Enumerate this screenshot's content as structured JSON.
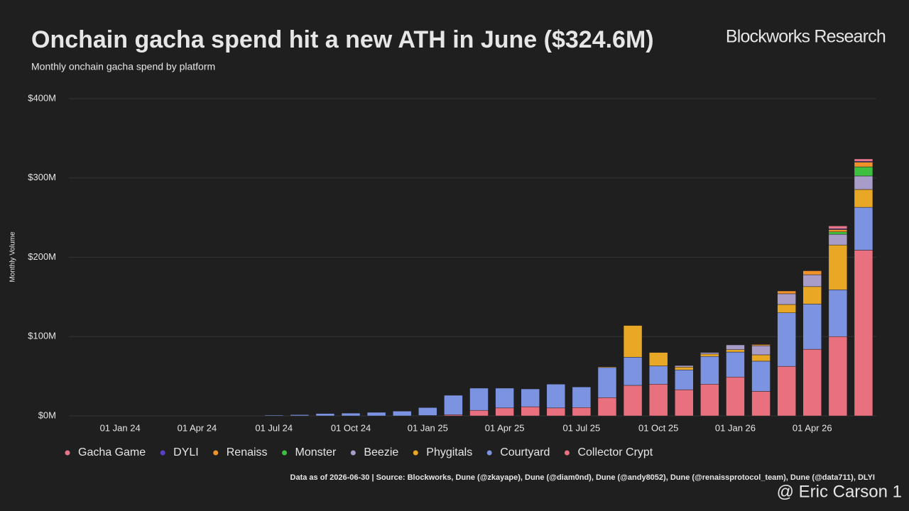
{
  "chart_data": {
    "type": "stacked_bar",
    "title": "Onchain gacha spend hit a new ATH in June ($324.6M)",
    "subtitle": "Monthly onchain gacha spend by platform",
    "brand": "Blockworks Research",
    "y_label": "Monthly Volume",
    "source": "Data as of 2026-06-30 | Source: Blockworks, Dune (@zkayape), Dune (@diam0nd), Dune (@andy8052), Dune (@renaissprotocol_team), Dune (@data711), DLYI",
    "watermark": "@ Eric Carson 1",
    "categories": [
      null,
      "01 Jan 24",
      null,
      null,
      "01 Apr 24",
      null,
      null,
      "01 Jul 24",
      null,
      null,
      "01 Oct 24",
      null,
      null,
      "01 Jan 25",
      null,
      null,
      "01 Apr 25",
      null,
      null,
      "01 Jul 25",
      null,
      null,
      "01 Oct 25",
      null,
      null,
      "01 Jan 26",
      null,
      null,
      "01 Apr 26",
      null,
      null
    ],
    "ylim": [
      0,
      400
    ],
    "yticks": [
      {
        "value": 0,
        "label": "$0M"
      },
      {
        "value": 100,
        "label": "$100M"
      },
      {
        "value": 200,
        "label": "$200M"
      },
      {
        "value": 300,
        "label": "$300M"
      },
      {
        "value": 400,
        "label": "$400M"
      }
    ],
    "grid": true,
    "legend": "bottom-left",
    "series": [
      {
        "name": "Gacha Game",
        "color": "#e8768a",
        "values": [
          0,
          0,
          0,
          0,
          0,
          0,
          0,
          0,
          0,
          0,
          0,
          0,
          0,
          0,
          0,
          0,
          0,
          0,
          0,
          0,
          0,
          0,
          0,
          0,
          0,
          0,
          0,
          0,
          0,
          3.5,
          3
        ]
      },
      {
        "name": "DYLI",
        "color": "#5a3fc9",
        "values": [
          0,
          0,
          0,
          0,
          0,
          0,
          0,
          0,
          0,
          0,
          0,
          0,
          0,
          0,
          0,
          0,
          0,
          0,
          0,
          0,
          0,
          0,
          0,
          0,
          0,
          0,
          0,
          0,
          0,
          1,
          1
        ]
      },
      {
        "name": "Renaiss",
        "color": "#f0922a",
        "values": [
          0,
          0,
          0,
          0,
          0,
          0,
          0,
          0,
          0,
          0,
          0,
          0,
          0,
          0,
          0,
          0,
          0,
          0,
          0,
          0,
          0,
          0,
          0,
          0,
          0,
          0,
          1.5,
          3.5,
          5,
          3,
          6
        ]
      },
      {
        "name": "Monster",
        "color": "#3fbf3f",
        "values": [
          0,
          0,
          0,
          0,
          0,
          0,
          0,
          0,
          0,
          0,
          0,
          0,
          0,
          0,
          0,
          0,
          0,
          0,
          0,
          0,
          0,
          0,
          0,
          0,
          0,
          0,
          0,
          0,
          0,
          3,
          11.5
        ]
      },
      {
        "name": "Beezie",
        "color": "#a89cc8",
        "values": [
          0,
          0,
          0,
          0,
          0,
          0,
          0,
          0,
          0,
          0,
          0,
          0,
          0,
          0,
          0,
          0,
          0,
          0,
          0,
          0,
          0,
          0,
          0,
          2,
          2,
          6,
          11.5,
          13.5,
          15,
          13.5,
          17
        ]
      },
      {
        "name": "Phygitals",
        "color": "#e8a825",
        "values": [
          0,
          0,
          0,
          0,
          0,
          0,
          0,
          0,
          0,
          0,
          0,
          0,
          0,
          0,
          0,
          0,
          0,
          0,
          0,
          0,
          1,
          40,
          17,
          3.5,
          3,
          3,
          8,
          10.5,
          22,
          56.5,
          22.5
        ]
      },
      {
        "name": "Courtyard",
        "color": "#7b93e0",
        "values": [
          0,
          0,
          0,
          0,
          0,
          0,
          0,
          1,
          1.5,
          3,
          3.5,
          4.5,
          6,
          10,
          24.5,
          28,
          25,
          22.5,
          30,
          26,
          38,
          35.5,
          23,
          25,
          35,
          31.5,
          38,
          67.5,
          57,
          59,
          54
        ]
      },
      {
        "name": "Collector Crypt",
        "color": "#e8707f",
        "values": [
          0,
          0,
          0,
          0,
          0,
          0,
          0,
          0,
          0,
          0,
          0,
          0,
          0,
          0.5,
          1.5,
          7,
          10,
          11.5,
          10,
          10.5,
          23,
          38.5,
          40,
          33,
          40,
          49,
          31,
          62.5,
          84,
          100,
          209
        ]
      }
    ]
  }
}
